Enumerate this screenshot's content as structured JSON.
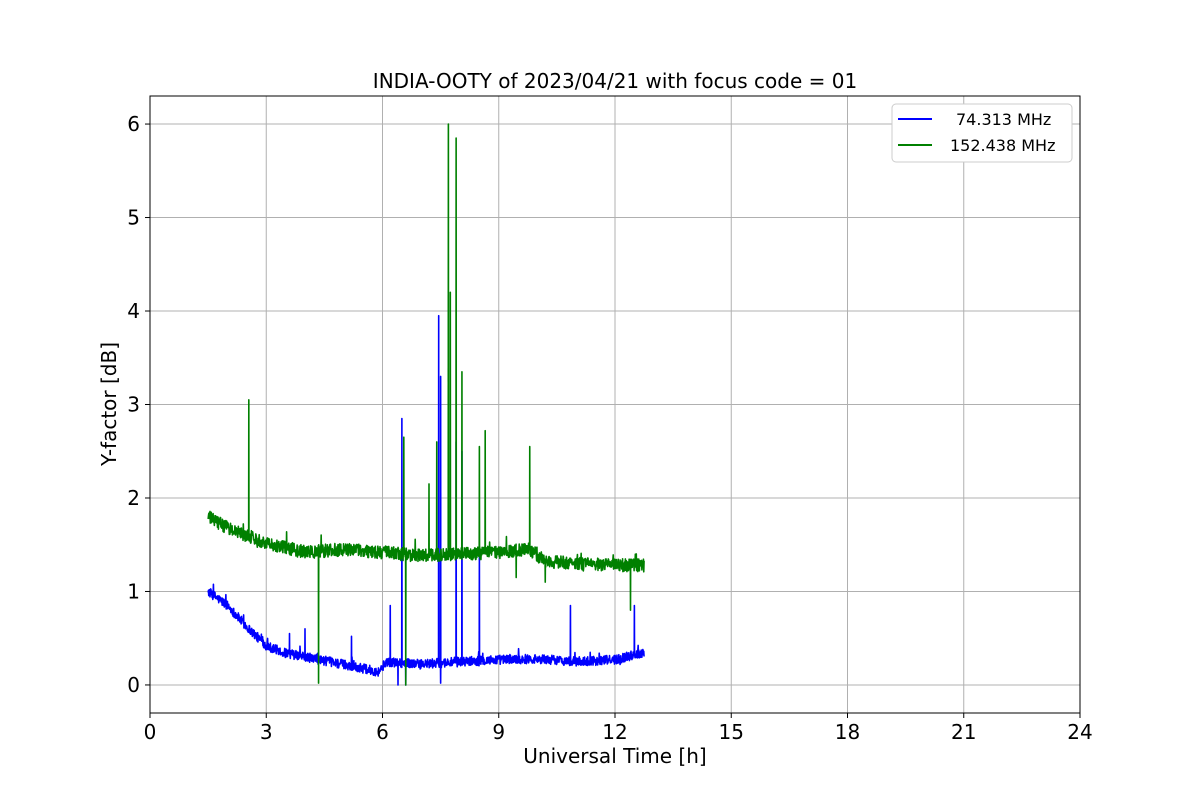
{
  "chart_data": {
    "type": "line",
    "title": "INDIA-OOTY of 2023/04/21 with focus code = 01",
    "xlabel": "Universal Time [h]",
    "ylabel": "Y-factor [dB]",
    "xlim": [
      0,
      24
    ],
    "ylim": [
      -0.3,
      6.3
    ],
    "xticks": [
      0,
      3,
      6,
      9,
      12,
      15,
      18,
      21,
      24
    ],
    "xtick_labels": [
      "0",
      "3",
      "6",
      "9",
      "12",
      "15",
      "18",
      "21",
      "24"
    ],
    "yticks": [
      0,
      1,
      2,
      3,
      4,
      5,
      6
    ],
    "ytick_labels": [
      "0",
      "1",
      "2",
      "3",
      "4",
      "5",
      "6"
    ],
    "grid": true,
    "legend_position": "top-right",
    "series": [
      {
        "name": "74.313 MHz",
        "color": "#0000ff",
        "baseline": [
          [
            1.5,
            1.0
          ],
          [
            2.0,
            0.85
          ],
          [
            2.5,
            0.62
          ],
          [
            3.0,
            0.42
          ],
          [
            3.5,
            0.34
          ],
          [
            4.0,
            0.3
          ],
          [
            5.0,
            0.22
          ],
          [
            5.9,
            0.14
          ],
          [
            6.1,
            0.25
          ],
          [
            7.0,
            0.22
          ],
          [
            8.0,
            0.25
          ],
          [
            9.0,
            0.27
          ],
          [
            10.0,
            0.28
          ],
          [
            11.0,
            0.25
          ],
          [
            12.0,
            0.27
          ],
          [
            12.75,
            0.35
          ]
        ],
        "noise": 0.05,
        "spikes": [
          [
            3.6,
            0.55
          ],
          [
            4.0,
            0.6
          ],
          [
            5.2,
            0.52
          ],
          [
            6.2,
            0.85
          ],
          [
            6.5,
            2.85
          ],
          [
            7.45,
            3.95
          ],
          [
            7.5,
            3.3
          ],
          [
            7.9,
            2.6
          ],
          [
            8.05,
            2.5
          ],
          [
            8.5,
            1.45
          ],
          [
            10.85,
            0.85
          ],
          [
            12.5,
            0.85
          ]
        ],
        "dips": [
          [
            6.4,
            0.0
          ],
          [
            6.6,
            0.0
          ],
          [
            7.5,
            0.02
          ]
        ]
      },
      {
        "name": "152.438 MHz",
        "color": "#008000",
        "baseline": [
          [
            1.5,
            1.8
          ],
          [
            2.0,
            1.68
          ],
          [
            3.0,
            1.52
          ],
          [
            4.0,
            1.42
          ],
          [
            5.0,
            1.45
          ],
          [
            6.0,
            1.42
          ],
          [
            7.0,
            1.38
          ],
          [
            8.0,
            1.4
          ],
          [
            9.0,
            1.42
          ],
          [
            9.8,
            1.45
          ],
          [
            10.2,
            1.32
          ],
          [
            11.0,
            1.3
          ],
          [
            12.0,
            1.28
          ],
          [
            12.75,
            1.28
          ]
        ],
        "noise": 0.07,
        "spikes": [
          [
            2.55,
            3.05
          ],
          [
            6.55,
            2.65
          ],
          [
            7.2,
            2.15
          ],
          [
            7.4,
            2.6
          ],
          [
            7.7,
            6.0
          ],
          [
            7.75,
            4.2
          ],
          [
            7.9,
            5.85
          ],
          [
            8.05,
            3.35
          ],
          [
            8.5,
            2.55
          ],
          [
            8.65,
            2.72
          ],
          [
            9.8,
            2.55
          ]
        ],
        "dips": [
          [
            4.35,
            0.02
          ],
          [
            6.6,
            0.0
          ],
          [
            9.45,
            1.15
          ],
          [
            10.2,
            1.1
          ],
          [
            12.4,
            0.8
          ]
        ]
      }
    ]
  }
}
